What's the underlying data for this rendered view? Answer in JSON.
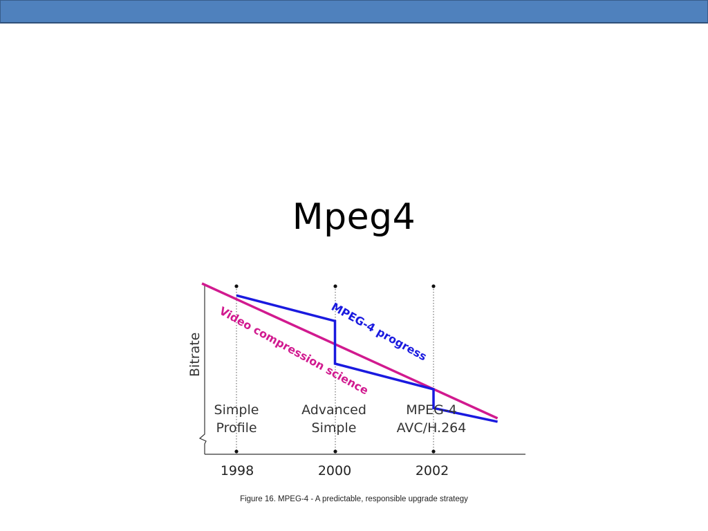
{
  "slide": {
    "title": "Mpeg4"
  },
  "colors": {
    "topbar": "#4f81bd",
    "mpeg4_progress": "#1a1adf",
    "video_compression_science": "#d11a8f"
  },
  "chart_data": {
    "type": "line",
    "ylabel": "Bitrate",
    "xlabel": "",
    "x_ticks": [
      "1998",
      "2000",
      "2002"
    ],
    "milestones": [
      {
        "year": "1998",
        "line1": "Simple",
        "line2": "Profile"
      },
      {
        "year": "2000",
        "line1": "Advanced",
        "line2": "Simple"
      },
      {
        "year": "2002",
        "line1": "MPEG-4",
        "line2": "AVC/H.264"
      }
    ],
    "series": [
      {
        "name": "Video compression science",
        "x": [
          1997.3,
          2003.3
        ],
        "y": [
          10.0,
          2.1
        ]
      },
      {
        "name": "MPEG-4 progress",
        "x": [
          1998.0,
          2000.0,
          2000.0,
          2002.0,
          2002.0,
          2003.3
        ],
        "y": [
          9.3,
          7.8,
          5.3,
          3.8,
          2.7,
          1.9
        ]
      }
    ],
    "caption": "Figure 16. MPEG-4 - A predictable, responsible upgrade strategy"
  }
}
